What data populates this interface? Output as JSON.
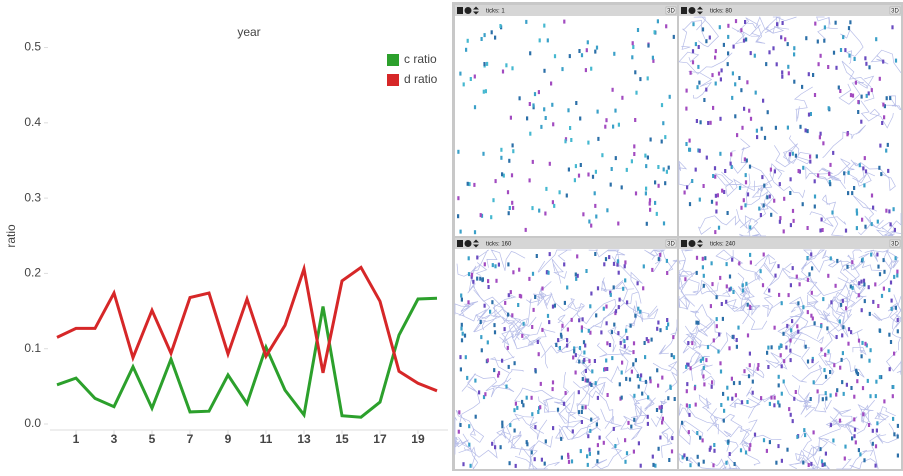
{
  "chart_data": {
    "type": "line",
    "title": "year",
    "y_label": "ratio",
    "x": [
      0,
      1,
      2,
      3,
      4,
      5,
      6,
      7,
      8,
      9,
      10,
      11,
      12,
      13,
      14,
      15,
      16,
      17,
      18,
      19,
      20
    ],
    "series": [
      {
        "name": "c ratio",
        "color": "#2ca02c",
        "values": [
          0.052,
          0.061,
          0.034,
          0.023,
          0.076,
          0.021,
          0.086,
          0.016,
          0.017,
          0.065,
          0.027,
          0.102,
          0.045,
          0.012,
          0.156,
          0.011,
          0.009,
          0.029,
          0.118,
          0.166,
          0.167
        ]
      },
      {
        "name": "d ratio",
        "color": "#d62728",
        "values": [
          0.115,
          0.127,
          0.127,
          0.174,
          0.088,
          0.151,
          0.094,
          0.168,
          0.174,
          0.093,
          0.166,
          0.09,
          0.131,
          0.206,
          0.068,
          0.19,
          0.208,
          0.163,
          0.07,
          0.054,
          0.044
        ]
      }
    ],
    "xlim": [
      -0.37,
      20.58
    ],
    "xticks": [
      1,
      3,
      5,
      7,
      9,
      11,
      13,
      15,
      17,
      19
    ],
    "ylim": [
      -0.008,
      0.51
    ],
    "yticks": [
      {
        "value": 0,
        "label": "0.0"
      },
      0.1,
      0.2,
      0.3,
      0.4,
      0.5
    ],
    "legend": "upper right"
  },
  "panels": [
    {
      "ticks_label": "ticks: 1",
      "view": "3D"
    },
    {
      "ticks_label": "ticks: 80",
      "view": "3D"
    },
    {
      "ticks_label": "ticks: 160",
      "view": "3D"
    },
    {
      "ticks_label": "ticks: 240",
      "view": "3D"
    }
  ]
}
